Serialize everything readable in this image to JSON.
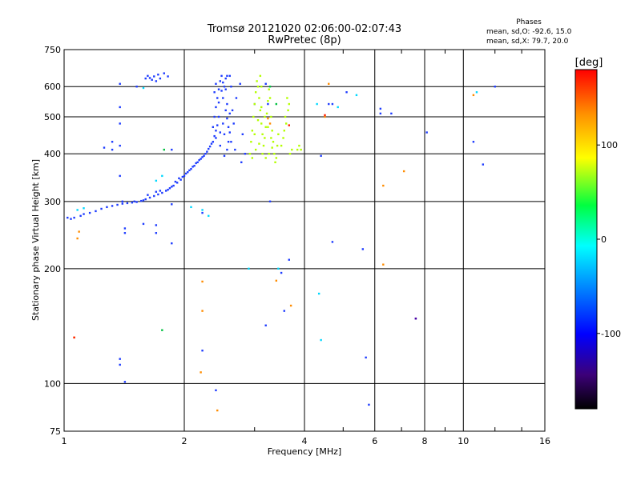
{
  "chart_data": {
    "type": "scatter",
    "title": "Tromsø 20121020 02:06:00-02:07:43",
    "subtitle": "RwPretec (8p)",
    "xlabel": "Frequency [MHz]",
    "ylabel": "Stationary phase Virtual Height [km]",
    "x_scale": "log",
    "y_scale": "log",
    "xlim": [
      1,
      16
    ],
    "ylim": [
      75,
      750
    ],
    "x_tick_labels": [
      "1",
      "2",
      "4",
      "6",
      "8",
      "10",
      "16"
    ],
    "x_ticks": [
      1,
      2,
      4,
      6,
      8,
      10,
      16
    ],
    "x_grid_lines": [
      1,
      2,
      4,
      6,
      8,
      10,
      16
    ],
    "y_tick_labels": [
      "75",
      "100",
      "200",
      "300",
      "400",
      "500",
      "600",
      "750"
    ],
    "y_ticks": [
      75,
      100,
      200,
      300,
      400,
      500,
      600,
      750
    ],
    "y_grid_lines": [
      100,
      200,
      300,
      400,
      500,
      600
    ],
    "grid": true,
    "colorbar": {
      "label": "[deg]",
      "range": [
        -180,
        180
      ],
      "tick_labels": [
        "100",
        "0",
        "-100"
      ],
      "ticks": [
        100,
        0,
        -100
      ]
    },
    "legend": {
      "title": "Phases",
      "lines": [
        "mean, sd,O: -92.6, 15.0",
        "mean, sd,X: 79.7, 20.0"
      ],
      "placement": "top-right"
    },
    "series": [
      {
        "mode": "O",
        "color": "#1e3cff",
        "points": [
          [
            1.02,
            272
          ],
          [
            1.04,
            270
          ],
          [
            1.06,
            272
          ],
          [
            1.1,
            275
          ],
          [
            1.12,
            278
          ],
          [
            1.16,
            280
          ],
          [
            1.2,
            283
          ],
          [
            1.24,
            287
          ],
          [
            1.28,
            290
          ],
          [
            1.32,
            292
          ],
          [
            1.36,
            294
          ],
          [
            1.4,
            296
          ],
          [
            1.44,
            297
          ],
          [
            1.48,
            298
          ],
          [
            1.52,
            299
          ],
          [
            1.56,
            301
          ],
          [
            1.6,
            304
          ],
          [
            1.64,
            307
          ],
          [
            1.68,
            310
          ],
          [
            1.72,
            313
          ],
          [
            1.76,
            316
          ],
          [
            1.8,
            320
          ],
          [
            1.84,
            325
          ],
          [
            1.88,
            330
          ],
          [
            1.92,
            336
          ],
          [
            1.96,
            342
          ],
          [
            2.0,
            350
          ],
          [
            2.04,
            358
          ],
          [
            2.08,
            365
          ],
          [
            2.12,
            372
          ],
          [
            2.16,
            380
          ],
          [
            2.2,
            388
          ],
          [
            2.24,
            395
          ],
          [
            2.28,
            405
          ],
          [
            2.32,
            418
          ],
          [
            2.36,
            430
          ],
          [
            2.38,
            445
          ],
          [
            2.4,
            460
          ],
          [
            1.5,
            300
          ],
          [
            1.58,
            302
          ],
          [
            1.7,
            318
          ],
          [
            1.82,
            322
          ],
          [
            1.9,
            338
          ],
          [
            1.98,
            348
          ],
          [
            2.06,
            362
          ],
          [
            2.14,
            378
          ],
          [
            2.22,
            392
          ],
          [
            2.3,
            412
          ],
          [
            1.62,
            312
          ],
          [
            1.74,
            320
          ],
          [
            1.86,
            328
          ],
          [
            1.94,
            345
          ],
          [
            2.02,
            355
          ],
          [
            2.1,
            370
          ],
          [
            2.18,
            385
          ],
          [
            2.26,
            400
          ],
          [
            2.34,
            425
          ],
          [
            2.36,
            470
          ],
          [
            2.38,
            500
          ],
          [
            2.4,
            530
          ],
          [
            2.42,
            560
          ],
          [
            2.44,
            590
          ],
          [
            2.46,
            620
          ],
          [
            2.48,
            640
          ],
          [
            2.38,
            580
          ],
          [
            2.4,
            610
          ],
          [
            2.44,
            500
          ],
          [
            2.5,
            560
          ],
          [
            2.52,
            600
          ],
          [
            2.54,
            630
          ],
          [
            2.56,
            640
          ],
          [
            2.5,
            480
          ],
          [
            2.52,
            450
          ],
          [
            2.54,
            520
          ],
          [
            2.56,
            540
          ],
          [
            2.58,
            470
          ],
          [
            2.6,
            510
          ],
          [
            2.46,
            455
          ],
          [
            2.44,
            545
          ],
          [
            2.48,
            585
          ],
          [
            2.5,
            615
          ],
          [
            2.54,
            590
          ],
          [
            2.56,
            495
          ],
          [
            2.58,
            430
          ],
          [
            2.6,
            455
          ],
          [
            2.62,
            600
          ],
          [
            2.46,
            420
          ],
          [
            2.6,
            640
          ],
          [
            2.64,
            520
          ],
          [
            2.66,
            480
          ],
          [
            2.68,
            410
          ],
          [
            2.7,
            560
          ],
          [
            2.4,
            440
          ],
          [
            2.42,
            475
          ],
          [
            2.56,
            410
          ],
          [
            2.52,
            395
          ],
          [
            2.62,
            430
          ],
          [
            2.76,
            610
          ],
          [
            2.8,
            450
          ],
          [
            2.84,
            400
          ],
          [
            2.78,
            380
          ],
          [
            1.6,
            630
          ],
          [
            1.62,
            640
          ],
          [
            1.64,
            632
          ],
          [
            1.66,
            625
          ],
          [
            1.68,
            638
          ],
          [
            1.7,
            620
          ],
          [
            1.72,
            645
          ],
          [
            1.74,
            630
          ],
          [
            1.78,
            650
          ],
          [
            1.82,
            638
          ],
          [
            1.52,
            600
          ],
          [
            1.38,
            610
          ],
          [
            1.38,
            530
          ],
          [
            1.38,
            480
          ],
          [
            1.38,
            420
          ],
          [
            1.38,
            350
          ],
          [
            1.4,
            300
          ],
          [
            1.32,
            430
          ],
          [
            1.32,
            410
          ],
          [
            1.26,
            415
          ],
          [
            1.86,
            410
          ],
          [
            1.86,
            295
          ],
          [
            1.86,
            233
          ],
          [
            1.7,
            260
          ],
          [
            1.7,
            248
          ],
          [
            1.58,
            262
          ],
          [
            1.42,
            255
          ],
          [
            1.42,
            248
          ],
          [
            2.22,
            280
          ],
          [
            2.22,
            122
          ],
          [
            1.38,
            116
          ],
          [
            1.38,
            112
          ],
          [
            1.42,
            101
          ],
          [
            2.4,
            96
          ],
          [
            3.0,
            540
          ],
          [
            3.2,
            610
          ],
          [
            3.24,
            540
          ],
          [
            3.28,
            300
          ],
          [
            3.56,
            155
          ],
          [
            3.5,
            195
          ],
          [
            3.66,
            211
          ],
          [
            4.4,
            395
          ],
          [
            4.6,
            540
          ],
          [
            4.7,
            235
          ],
          [
            4.7,
            540
          ],
          [
            5.1,
            580
          ],
          [
            5.6,
            225
          ],
          [
            5.7,
            117
          ],
          [
            5.8,
            88
          ],
          [
            6.2,
            510
          ],
          [
            6.2,
            525
          ],
          [
            6.6,
            510
          ],
          [
            8.1,
            455
          ],
          [
            10.6,
            430
          ],
          [
            11.2,
            375
          ],
          [
            12.0,
            600
          ],
          [
            7.6,
            148
          ],
          [
            3.2,
            142
          ]
        ]
      },
      {
        "mode": "X",
        "color": "#b4ff00",
        "points": [
          [
            2.92,
            400
          ],
          [
            2.94,
            430
          ],
          [
            2.96,
            460
          ],
          [
            2.98,
            500
          ],
          [
            3.0,
            540
          ],
          [
            3.02,
            580
          ],
          [
            3.04,
            620
          ],
          [
            3.06,
            600
          ],
          [
            3.08,
            560
          ],
          [
            3.1,
            520
          ],
          [
            3.12,
            480
          ],
          [
            3.14,
            450
          ],
          [
            3.16,
            420
          ],
          [
            3.18,
            440
          ],
          [
            3.2,
            470
          ],
          [
            3.22,
            510
          ],
          [
            3.24,
            550
          ],
          [
            3.26,
            590
          ],
          [
            3.28,
            560
          ],
          [
            3.3,
            500
          ],
          [
            3.32,
            460
          ],
          [
            3.34,
            430
          ],
          [
            3.36,
            400
          ],
          [
            3.38,
            380
          ],
          [
            3.4,
            390
          ],
          [
            3.42,
            420
          ],
          [
            3.44,
            450
          ],
          [
            2.96,
            390
          ],
          [
            3.02,
            410
          ],
          [
            3.08,
            425
          ],
          [
            3.14,
            400
          ],
          [
            3.2,
            390
          ],
          [
            3.26,
            400
          ],
          [
            3.32,
            415
          ],
          [
            3.0,
            450
          ],
          [
            3.06,
            490
          ],
          [
            3.12,
            530
          ],
          [
            3.18,
            500
          ],
          [
            3.24,
            470
          ],
          [
            3.3,
            440
          ],
          [
            3.12,
            600
          ],
          [
            3.1,
            640
          ],
          [
            3.5,
            420
          ],
          [
            3.54,
            440
          ],
          [
            3.6,
            480
          ],
          [
            3.64,
            520
          ],
          [
            3.66,
            540
          ],
          [
            3.62,
            560
          ],
          [
            3.58,
            500
          ],
          [
            3.56,
            460
          ],
          [
            3.68,
            400
          ],
          [
            3.72,
            410
          ],
          [
            3.84,
            410
          ],
          [
            3.88,
            420
          ],
          [
            3.92,
            410
          ]
        ]
      },
      {
        "mode": "other",
        "color": "#00d8ff",
        "points": [
          [
            1.08,
            285
          ],
          [
            1.12,
            288
          ],
          [
            1.58,
            595
          ],
          [
            2.08,
            290
          ],
          [
            2.22,
            285
          ],
          [
            2.3,
            275
          ],
          [
            2.9,
            200
          ],
          [
            3.44,
            200
          ],
          [
            4.35,
            172
          ],
          [
            4.3,
            540
          ],
          [
            4.4,
            130
          ],
          [
            4.85,
            530
          ],
          [
            5.4,
            570
          ],
          [
            10.8,
            580
          ],
          [
            1.7,
            340
          ],
          [
            1.76,
            350
          ]
        ]
      },
      {
        "mode": "other",
        "color": "#ff8c00",
        "points": [
          [
            1.08,
            240
          ],
          [
            1.09,
            250
          ],
          [
            1.06,
            132
          ],
          [
            2.22,
            185
          ],
          [
            2.22,
            155
          ],
          [
            2.2,
            107
          ],
          [
            2.42,
            85
          ],
          [
            3.7,
            160
          ],
          [
            3.4,
            186
          ],
          [
            4.6,
            610
          ],
          [
            4.5,
            500
          ],
          [
            6.3,
            205
          ],
          [
            6.3,
            330
          ],
          [
            7.1,
            360
          ],
          [
            10.6,
            570
          ],
          [
            3.28,
            480
          ],
          [
            3.24,
            495
          ]
        ]
      },
      {
        "mode": "other",
        "color": "#ff2000",
        "points": [
          [
            1.06,
            132
          ],
          [
            4.5,
            505
          ],
          [
            3.66,
            475
          ]
        ]
      },
      {
        "mode": "other",
        "color": "#00c040",
        "points": [
          [
            1.76,
            138
          ],
          [
            1.78,
            410
          ],
          [
            3.4,
            540
          ],
          [
            3.28,
            600
          ]
        ]
      },
      {
        "mode": "other",
        "color": "#5000a0",
        "points": [
          [
            7.6,
            148
          ]
        ]
      }
    ]
  }
}
